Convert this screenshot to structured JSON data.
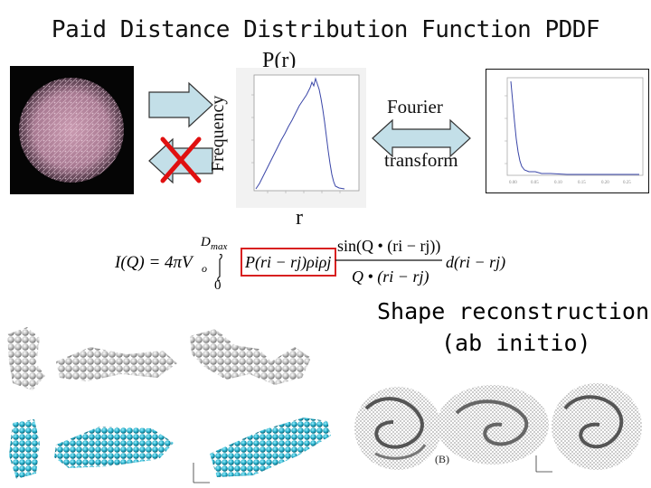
{
  "title": "Paid Distance Distribution Function PDDF",
  "pr_label": "P(r)",
  "frequency_label": "Frequency",
  "r_label": "r",
  "fourier_label": "Fourier",
  "transform_label": "transform",
  "shape_reconstruction": {
    "line1": "Shape reconstruction",
    "line2": "(ab initio)"
  },
  "formula": {
    "lhs": "I(Q) = 4πV",
    "lhs_sub": "o",
    "upper_limit": "D",
    "upper_limit_sub": "max",
    "lower_limit": "0",
    "integrand": "P(r",
    "boxed_part": "P(ri − rj)ρiρj",
    "numerator": "sin(Q • (ri − rj))",
    "denominator": "Q • (ri − rj)",
    "differential": "d(ri − rj)"
  },
  "colors": {
    "arrow_fill": "#c3dfe8",
    "cross": "#e01010",
    "box": "#d82020",
    "curve": "#3a46a8",
    "molecule_pink": "#c99ab0",
    "model_gray": "#b4b4b4",
    "model_teal": "#1ea8c4"
  },
  "icons": {
    "cross": "red-x-icon",
    "double_arrow": "double-headed-arrow-icon"
  }
}
